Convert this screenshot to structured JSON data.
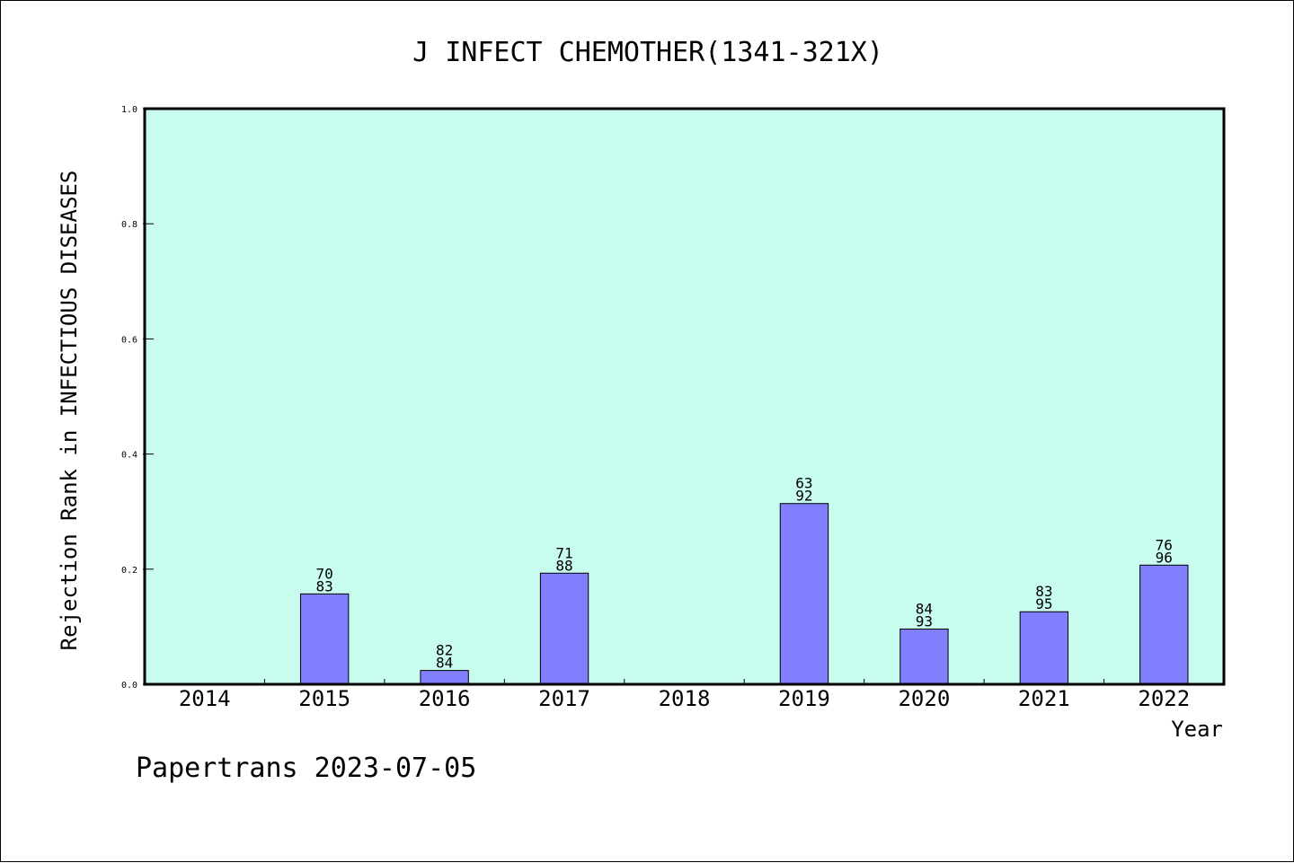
{
  "chart_data": {
    "type": "bar",
    "title": "J INFECT CHEMOTHER(1341-321X)",
    "xlabel": "Year",
    "ylabel": "Rejection Rank in INFECTIOUS DISEASES",
    "ylim": [
      0,
      1.0
    ],
    "yticks": [
      "0.0",
      "0.2",
      "0.4",
      "0.6",
      "0.8",
      "1.0"
    ],
    "categories": [
      "2014",
      "2015",
      "2016",
      "2017",
      "2018",
      "2019",
      "2020",
      "2021",
      "2022"
    ],
    "values": [
      null,
      0.157,
      0.024,
      0.193,
      null,
      0.314,
      0.096,
      0.126,
      0.207
    ],
    "labels": [
      null,
      [
        "70",
        "83"
      ],
      [
        "82",
        "84"
      ],
      [
        "71",
        "88"
      ],
      null,
      [
        "63",
        "92"
      ],
      [
        "84",
        "93"
      ],
      [
        "83",
        "95"
      ],
      [
        "76",
        "96"
      ]
    ],
    "grid": false,
    "colors": {
      "plot_background": "#c8fcee",
      "bar_fill": "#8080ff",
      "bar_stroke": "#000000"
    }
  },
  "footer": "Papertrans 2023-07-05"
}
